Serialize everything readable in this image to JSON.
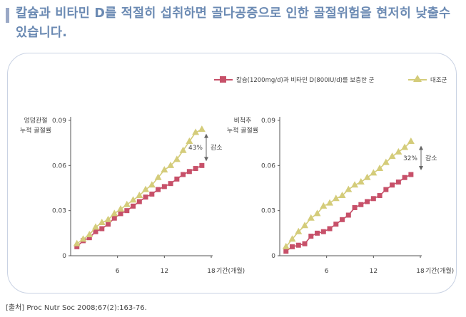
{
  "headline": "칼슘과 비타민 D를 적절히 섭취하면 골다공증으로 인한 골절위험을 현저히 낮출수 있습니다.",
  "colors": {
    "headline": "#6b8ab3",
    "accent_bar": "#9aa8c6",
    "panel_border": "#c9d2e3",
    "treatment": "#c75069",
    "control": "#d4cc7a"
  },
  "legend": {
    "treatment_label": "칼슘(1200mg/d)과 비타민 D(800IU/d)를 보충한 군",
    "control_label": "대조군"
  },
  "source": "[출처] Proc Nutr Soc 2008;67(2):163-76.",
  "chart_data": [
    {
      "type": "line",
      "ylabel": "엉덩관절\n누적 골절률",
      "xlabel": "기간(개월)",
      "ylim": [
        0,
        0.09
      ],
      "xlim": [
        0,
        18
      ],
      "y_ticks": [
        "0",
        "0.03",
        "0.06",
        "0.09"
      ],
      "x_ticks": [
        6,
        12,
        18
      ],
      "x_tick_labels": [
        "6",
        "12",
        "18"
      ],
      "annotation": {
        "text": "43%",
        "word": "감소"
      },
      "x": [
        0.8,
        1.6,
        2.4,
        3.2,
        4.0,
        4.8,
        5.6,
        6.4,
        7.2,
        8.0,
        8.8,
        9.6,
        10.4,
        11.2,
        12.0,
        12.8,
        13.6,
        14.4,
        15.2,
        16.0,
        16.8
      ],
      "series": [
        {
          "name": "칼슘(1200mg/d)과 비타민 D(800IU/d)를 보충한 군",
          "color": "#c75069",
          "marker": "square",
          "values": [
            0.006,
            0.01,
            0.012,
            0.016,
            0.018,
            0.021,
            0.025,
            0.028,
            0.03,
            0.033,
            0.036,
            0.039,
            0.041,
            0.044,
            0.046,
            0.048,
            0.051,
            0.054,
            0.056,
            0.058,
            0.06
          ]
        },
        {
          "name": "대조군",
          "color": "#d4cc7a",
          "marker": "triangle",
          "values": [
            0.008,
            0.011,
            0.014,
            0.019,
            0.022,
            0.024,
            0.028,
            0.031,
            0.034,
            0.037,
            0.04,
            0.044,
            0.047,
            0.052,
            0.057,
            0.06,
            0.064,
            0.07,
            0.076,
            0.082,
            0.084
          ]
        }
      ]
    },
    {
      "type": "line",
      "ylabel": "비척추\n누적 골절률",
      "xlabel": "기간(개월)",
      "ylim": [
        0,
        0.09
      ],
      "xlim": [
        0,
        18
      ],
      "y_ticks": [
        "0",
        "0.03",
        "0.06",
        "0.09"
      ],
      "x_ticks": [
        6,
        12,
        18
      ],
      "x_tick_labels": [
        "6",
        "12",
        "18"
      ],
      "annotation": {
        "text": "32%",
        "word": "감소"
      },
      "x": [
        0.8,
        1.6,
        2.4,
        3.2,
        4.0,
        4.8,
        5.6,
        6.4,
        7.2,
        8.0,
        8.8,
        9.6,
        10.4,
        11.2,
        12.0,
        12.8,
        13.6,
        14.4,
        15.2,
        16.0,
        16.8
      ],
      "series": [
        {
          "name": "칼슘(1200mg/d)과 비타민 D(800IU/d)를 보충한 군",
          "color": "#c75069",
          "marker": "square",
          "values": [
            0.003,
            0.006,
            0.007,
            0.008,
            0.013,
            0.015,
            0.016,
            0.018,
            0.021,
            0.024,
            0.027,
            0.032,
            0.034,
            0.036,
            0.038,
            0.04,
            0.044,
            0.047,
            0.049,
            0.052,
            0.054
          ]
        },
        {
          "name": "대조군",
          "color": "#d4cc7a",
          "marker": "triangle",
          "values": [
            0.006,
            0.011,
            0.016,
            0.02,
            0.025,
            0.028,
            0.033,
            0.035,
            0.038,
            0.04,
            0.044,
            0.047,
            0.049,
            0.052,
            0.055,
            0.058,
            0.062,
            0.066,
            0.069,
            0.072,
            0.076
          ]
        }
      ]
    }
  ]
}
